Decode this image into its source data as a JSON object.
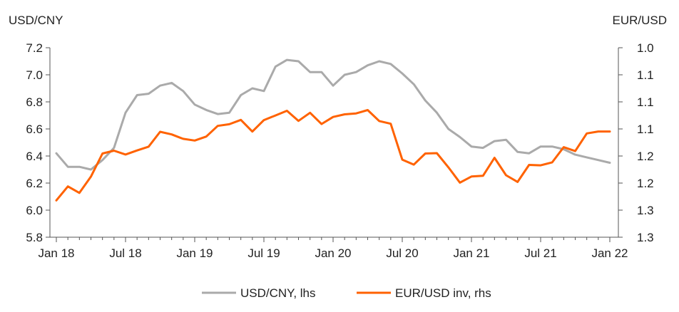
{
  "chart_data": {
    "type": "line",
    "left_axis_title": "USD/CNY",
    "right_axis_title": "EUR/USD",
    "left_axis": {
      "min": 5.8,
      "max": 7.2,
      "ticks": [
        "7.2",
        "7.0",
        "6.8",
        "6.6",
        "6.4",
        "6.2",
        "6.0",
        "5.8"
      ]
    },
    "right_axis": {
      "inverted": true,
      "min": 1.0,
      "max": 1.3,
      "ticks": [
        "1.0",
        "1.1",
        "1.1",
        "1.1",
        "1.2",
        "1.2",
        "1.3",
        "1.3"
      ]
    },
    "x_ticks": [
      "Jan 18",
      "Jul 18",
      "Jan 19",
      "Jul 19",
      "Jan 20",
      "Jul 20",
      "Jan 21",
      "Jul 21",
      "Jan 22"
    ],
    "x_tick_months": [
      0,
      6,
      12,
      18,
      24,
      30,
      36,
      42,
      48
    ],
    "legend_position": "bottom-center",
    "series": [
      {
        "name": "USD/CNY, lhs",
        "color": "#aaaaaa",
        "axis": "left",
        "months": [
          0,
          1,
          2,
          3,
          4,
          5,
          6,
          7,
          8,
          9,
          10,
          11,
          12,
          13,
          14,
          15,
          16,
          17,
          18,
          19,
          20,
          21,
          22,
          23,
          24,
          25,
          26,
          27,
          28,
          29,
          30,
          31,
          32,
          33,
          34,
          35,
          36,
          37,
          38,
          39,
          40,
          41,
          42,
          43,
          44,
          45,
          46,
          47,
          48
        ],
        "values": [
          6.42,
          6.32,
          6.32,
          6.3,
          6.37,
          6.46,
          6.72,
          6.85,
          6.86,
          6.92,
          6.94,
          6.88,
          6.78,
          6.74,
          6.71,
          6.72,
          6.85,
          6.9,
          6.88,
          7.06,
          7.11,
          7.1,
          7.02,
          7.02,
          6.92,
          7.0,
          7.02,
          7.07,
          7.1,
          7.08,
          7.01,
          6.93,
          6.81,
          6.72,
          6.6,
          6.54,
          6.47,
          6.46,
          6.51,
          6.52,
          6.43,
          6.42,
          6.47,
          6.47,
          6.45,
          6.41,
          6.39,
          6.37,
          6.35
        ]
      },
      {
        "name": "EUR/USD inv, rhs",
        "color": "#ff6200",
        "axis": "right",
        "months": [
          0,
          1,
          2,
          3,
          4,
          5,
          6,
          7,
          8,
          9,
          10,
          11,
          12,
          13,
          14,
          15,
          16,
          17,
          18,
          19,
          20,
          21,
          22,
          23,
          24,
          25,
          26,
          27,
          28,
          29,
          30,
          31,
          32,
          33,
          34,
          35,
          36,
          37,
          38,
          39,
          40,
          41,
          42,
          43,
          44,
          45,
          46,
          47,
          48
        ],
        "values": [
          1.2417,
          1.2196,
          1.2298,
          1.204,
          1.1675,
          1.163,
          1.1691,
          1.1626,
          1.1566,
          1.1331,
          1.1373,
          1.1442,
          1.1469,
          1.1406,
          1.1237,
          1.1211,
          1.1143,
          1.1327,
          1.1146,
          1.1072,
          1.0998,
          1.1158,
          1.103,
          1.1208,
          1.1096,
          1.1054,
          1.104,
          1.0987,
          1.1161,
          1.1203,
          1.1772,
          1.1851,
          1.1675,
          1.1669,
          1.1894,
          1.2136,
          1.2039,
          1.2028,
          1.1743,
          1.2019,
          1.2125,
          1.1855,
          1.1862,
          1.1815,
          1.1575,
          1.1636,
          1.1357,
          1.1326,
          1.1326
        ]
      }
    ]
  }
}
